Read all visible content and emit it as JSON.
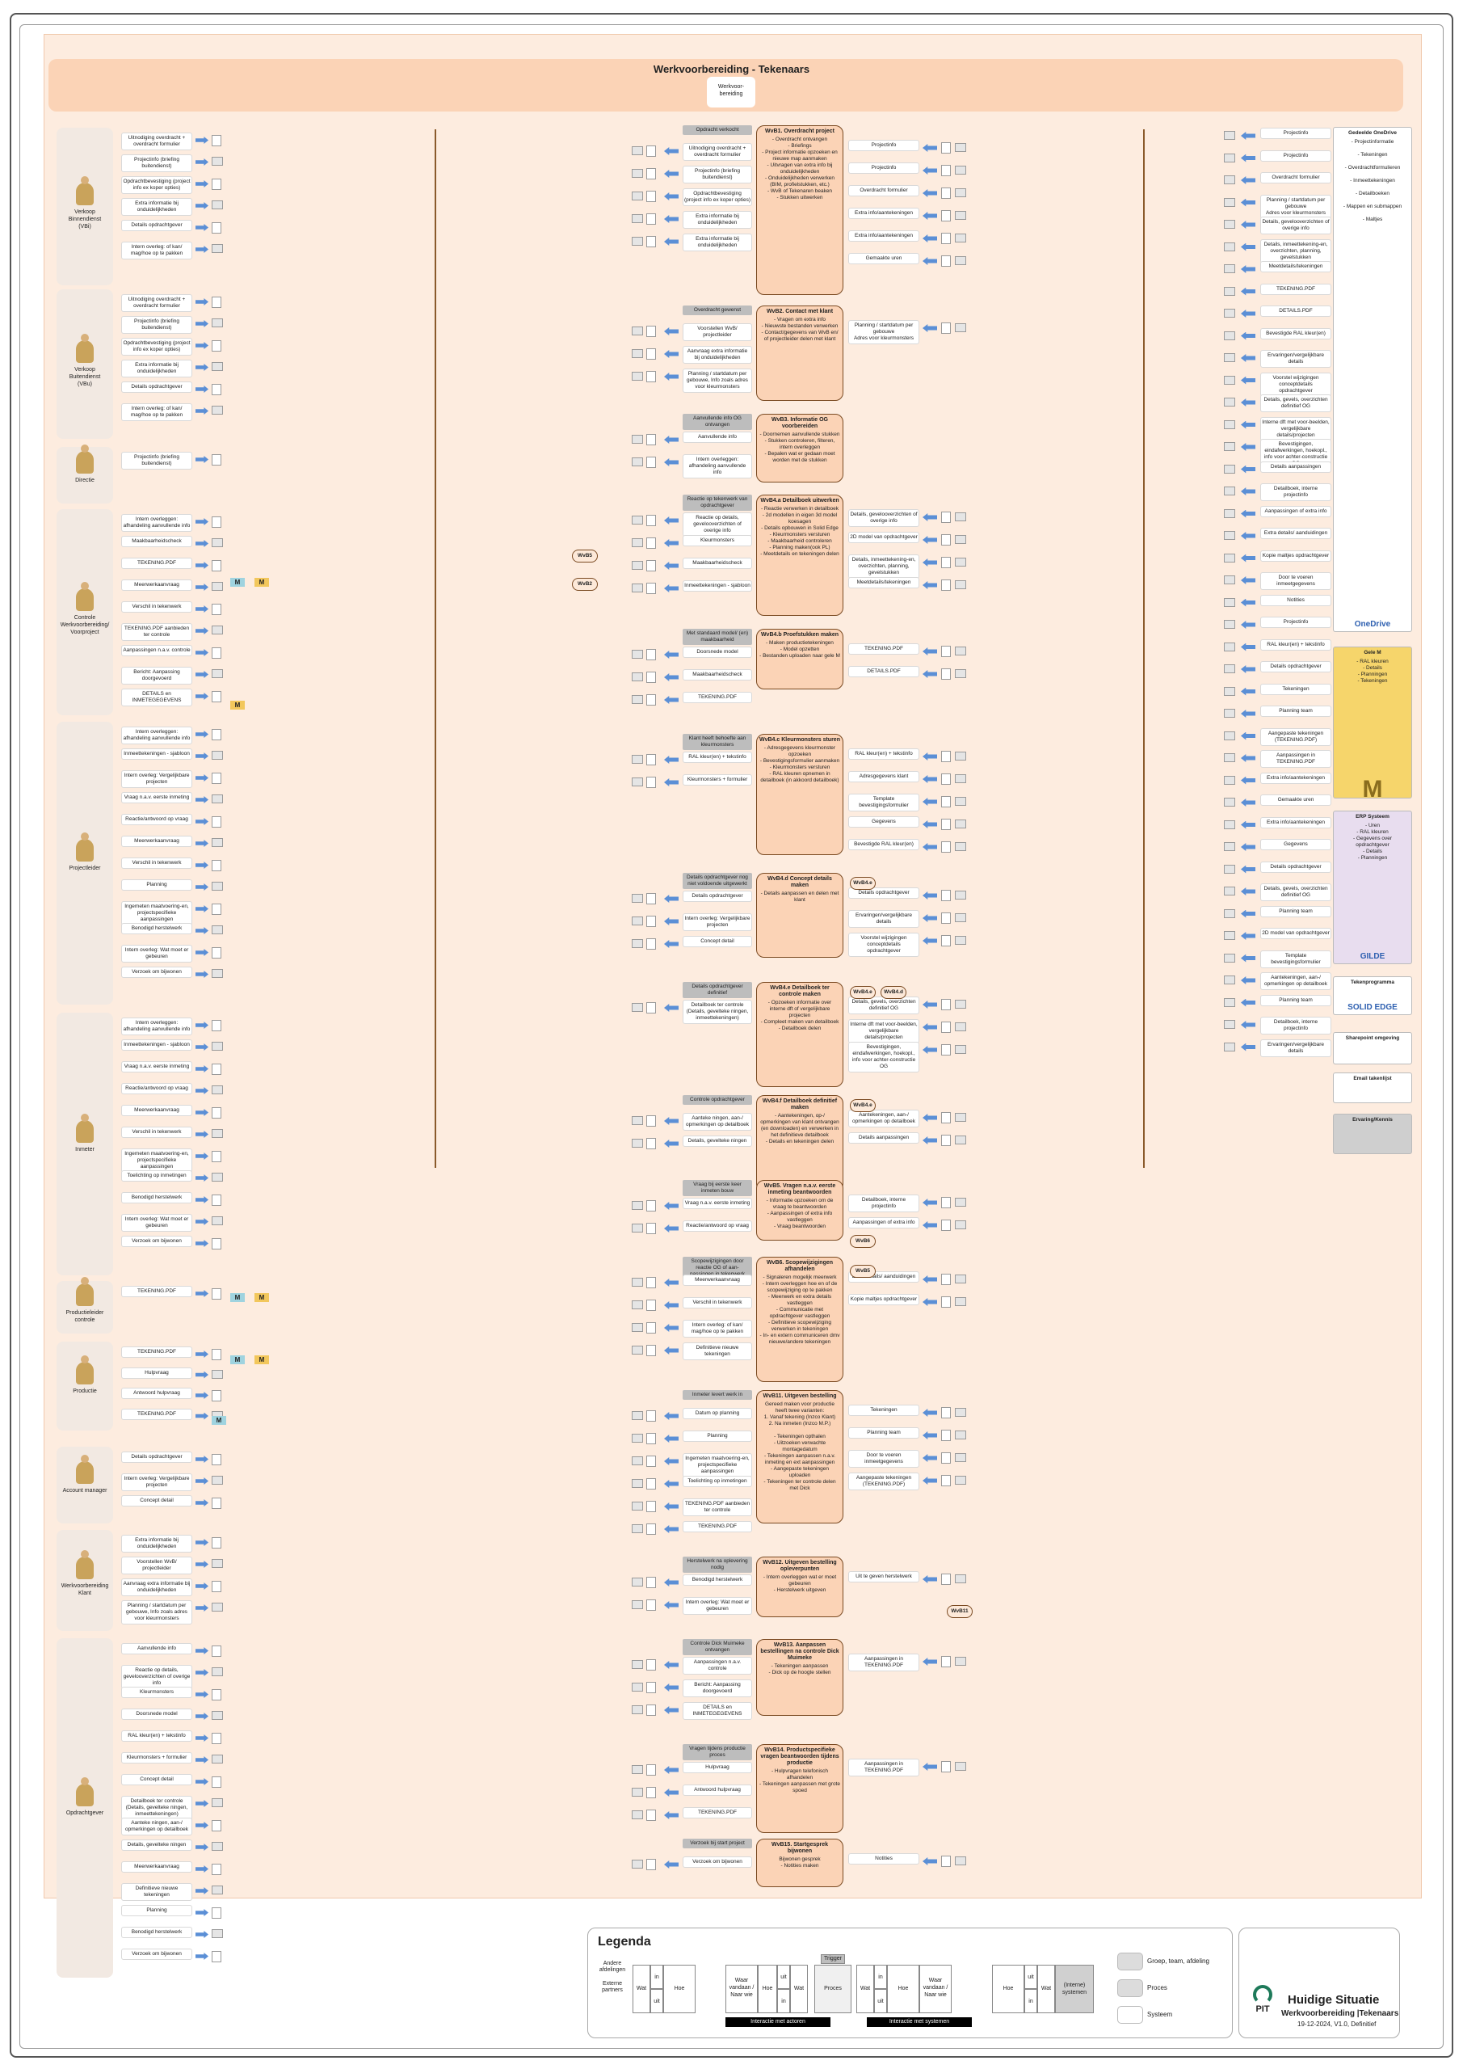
{
  "title": "Werkvoorbereiding - Tekenaars",
  "header_box": "Werkvoor-\nbereiding",
  "actors": [
    {
      "name": "Verkoop\nBinnendienst\n(VBi)",
      "top": 0
    },
    {
      "name": "Verkoop\nBuitendienst\n(VBu)"
    },
    {
      "name": "Directie"
    },
    {
      "name": "Controle\nWerkvoorbereiding/\nVoorproject"
    },
    {
      "name": "Projectleider"
    },
    {
      "name": "Inmeter"
    },
    {
      "name": "Productieleider\ncontrole"
    },
    {
      "name": "Productie"
    },
    {
      "name": "Account manager"
    },
    {
      "name": "Werkvoorbereiding\nKlant"
    },
    {
      "name": "Opdrachtgever"
    }
  ],
  "left_labels": {
    "vbi": [
      "Uitnodiging overdracht + overdracht formulier",
      "Projectinfo (briefing buitendienst)",
      "Opdrachtbevestiging (project info ex koper opties)",
      "Extra informatie bij onduidelijkheden",
      "Details opdrachtgever",
      "Intern overleg: of kan/ mag/hoe op te pakken"
    ],
    "vbu": [
      "Uitnodiging overdracht + overdracht formulier",
      "Projectinfo (briefing buitendienst)",
      "Opdrachtbevestiging (project info ex koper opties)",
      "Extra informatie bij onduidelijkheden",
      "Details opdrachtgever",
      "Intern overleg: of kan/ mag/hoe op te pakken"
    ],
    "directie": [
      "Projectinfo (briefing buitendienst)"
    ],
    "controle": [
      "Intern overleggen: afhandeling aanvullende info",
      "Maakbaarheidscheck",
      "TEKENING.PDF",
      "Meerwerkaanvraag",
      "Verschil in tekenwerk",
      "TEKENING.PDF aanbieden ter controle",
      "Aanpassingen n.a.v. controle",
      "Bericht: Aanpassing doorgevoerd",
      "DETAILS en INMETEGEGEVENS"
    ],
    "projectleider": [
      "Intern overleggen: afhandeling aanvullende info",
      "Inmeettekeningen - sjabloon",
      "Intern overleg: Vergelijkbare projecten",
      "Vraag n.a.v. eerste inmeting",
      "Reactie/antwoord op vraag",
      "Meerwerkaanvraag",
      "Verschil in tekenwerk",
      "Planning",
      "Ingemeten maatvoering-en, projectspecifieke aanpassingen",
      "Benodigd herstelwerk",
      "Intern overleg: Wat moet er gebeuren",
      "Verzoek om bijwonen"
    ],
    "inmeter": [
      "Intern overleggen: afhandeling aanvullende info",
      "Inmeettekeningen - sjabloon",
      "Vraag n.a.v. eerste inmeting",
      "Reactie/antwoord op vraag",
      "Meerwerkaanvraag",
      "Verschil in tekenwerk",
      "Ingemeten maatvoering-en, projectspecifieke aanpassingen",
      "Toelichting op inmetingen",
      "Benodigd herstelwerk",
      "Intern overleg: Wat moet er gebeuren",
      "Verzoek om bijwonen"
    ],
    "productieleider": [
      "TEKENING.PDF"
    ],
    "productie": [
      "TEKENING.PDF",
      "Hulpvraag",
      "Antwoord hulpvraag",
      "TEKENING.PDF"
    ],
    "accountmanager": [
      "Details opdrachtgever",
      "Intern overleg: Vergelijkbare projecten",
      "Concept detail"
    ],
    "wvbklant": [
      "Extra informatie bij onduidelijkheden",
      "Voorstellen WvB/ projectleider",
      "Aanvraag extra informatie bij onduidelijkheden",
      "Planning / startdatum per gebouwe, Info zoals adres voor kleurmonsters"
    ],
    "opdrachtgever": [
      "Aanvullende info",
      "Reactie op details, gevelooverzichten of overige info",
      "Kleurmonsters",
      "Doorsnede model",
      "RAL kleur(en) + tekstinfo",
      "Kleurmonsters + formulier",
      "Concept detail",
      "Detailboek ter controle (Details, gevelteke ningen, inmeettekeningen)",
      "Aanteke ningen, aan-/ opmerkingen op detailboek",
      "Details, gevelteke ningen",
      "Meerwerkaanvraag",
      "Definitieve nieuwe tekeningen",
      "Planning",
      "Benodigd herstelwerk",
      "Verzoek om bijwonen"
    ]
  },
  "processes": [
    {
      "trigger": "Opdracht verkocht",
      "title": "WvB1. Overdracht project",
      "text": "- Overdracht ontvangen\n- Briefings\n- Project informatie opzoeken en nieuwe map aanmaken\n- Uitvragen van extra info bij onduidelijkheden\n- Onduidelijkheden verwerken (BIM, profielstukken, etc.)\n- WvB of Tekenaren beaken\n- Stukken uitwerken",
      "inputs": [
        "Uitnodiging overdracht + overdracht formulier",
        "Projectinfo (briefing buitendienst)",
        "Opdrachtbevestiging (project info ex koper opties)",
        "Extra informatie bij onduidelijkheden",
        "Extra informatie bij onduidelijkheden"
      ],
      "outputs": [
        "Projectinfo",
        "Projectinfo",
        "Overdracht formulier",
        "Extra info/aantekeningen",
        "Extra info/aantekeningen",
        "Gemaakte uren"
      ]
    },
    {
      "trigger": "Overdracht gewenst",
      "title": "WvB2. Contact met klant",
      "text": "- Vragen om extra info\n- Nieuwste bestanden verwerken\n- Contact/gegevens van WvB en/ of projectleider delen met klant",
      "inputs": [
        "Voorstellen WvB/ projectleider",
        "Aanvraag extra informatie bij onduidelijkheden",
        "Planning / startdatum per gebouwe, Info zoals adres voor kleurmonsters"
      ],
      "outputs": [
        "Planning / startdatum per gebouwe\nAdres voor kleurmonsters"
      ]
    },
    {
      "trigger": "Aanvullende info OG ontvangen",
      "title": "WvB3. Informatie OG voorbereiden",
      "text": "- Doornemen aanvullende stukken\n- Stukken controleren, filteren, intern overleggen\n- Bepalen wat er gedaan moet worden met de stukken",
      "inputs": [
        "Aanvullende info",
        "Intern overleggen: afhandeling aanvullende info"
      ],
      "outputs": []
    },
    {
      "trigger": "Reactie op tekenwerk van opdrachtgever",
      "title": "WvB4.a Detailboek uitwerken",
      "text": "- Reactie verwerken in detailboek\n- 2d modellen in eigen 3d model koesagen\n- Details opbouwen in Solid Edge\n- Kleurmonsters versturen\n- Maakbaarheid controleren\n- Planning maken(ook PL)\n- Meetdetails en tekeningen delen",
      "inputs": [
        "Reactie op details, gevelooverzichten of overige info",
        "Kleurmonsters",
        "Maakbaarheidscheck",
        "Inmeettekeningen - sjabloon"
      ],
      "outputs": [
        "Details, gevelooverzichten of overige info",
        "2D model van opdrachtgever",
        "Details, inmeettekening-en, overzichten, planning, gevelstukken",
        "Meetdetails/tekeningen"
      ]
    },
    {
      "trigger": "Met standaard model/ (en) maakbaarheid",
      "title": "WvB4.b Proefstukken maken",
      "text": "- Maken productietekeningen\n- Model opzetten\n- Bestanden uploaden naar gele M",
      "inputs": [
        "Doorsnede model",
        "Maakbaarheidscheck",
        "TEKENING.PDF"
      ],
      "outputs": [
        "TEKENING.PDF",
        "DETAILS.PDF"
      ]
    },
    {
      "trigger": "Klant heeft behoefte aan kleurmonsters",
      "title": "WvB4.c Kleurmonsters sturen",
      "text": "- Adresgegevens kleurmonster opzoeken\n- Bevestigingsformulier aanmaken\n- Kleurmonsters versturen\n- RAL kleuren opnemen in detailboek (in akkoord detailboek)",
      "inputs": [
        "RAL kleur(en) + tekstinfo",
        "Kleurmonsters + formulier"
      ],
      "outputs": [
        "RAL kleur(en) + tekstinfo",
        "Adresgegevens klant",
        "Template bevestigingsformulier",
        "Gegevens",
        "Bevestigde RAL kleur(en)"
      ]
    },
    {
      "trigger": "Details opdrachtgever nog niet voldoende uitgewerkt",
      "title": "WvB4.d Concept details maken",
      "text": "- Details aanpassen en delen met klant",
      "inputs": [
        "Details opdrachtgever",
        "Intern overleg: Vergelijkbare projecten",
        "Concept detail"
      ],
      "outputs": [
        "Details opdrachtgever",
        "Ervaringen/vergelijkbare details",
        "Voorstel wijzigingen conceptdetails opdrachtgever"
      ]
    },
    {
      "trigger": "Details opdrachtgever definitief",
      "title": "WvB4.e Detailboek ter controle maken",
      "text": "- Opzoeken informatie over interne dft of vergelijkbare projecten\n- Compleet maken van detailboek\n- Detailboek delen",
      "inputs": [
        "Detailboek ter controle (Details, gevelteke ningen, inmeettekeningen)"
      ],
      "outputs": [
        "Details, gevels, overzichten definitief OG",
        "Interne dft met voor-beelden, vergelijkbare details/projecten",
        "Bevestigingen, eindafwerkingen, hoekopl., info voor achter-constructie OG"
      ]
    },
    {
      "trigger": "Controle opdrachtgever",
      "title": "WvB4.f Detailboek definitief maken",
      "text": "- Aantekeningen, op-/ opmerkingen van klant ontvangen (en downloaden) en verwerken in het definitieve detailboek\n- Details en tekeningen delen",
      "inputs": [
        "Aanteke ningen, aan-/ opmerkingen op detailboek",
        "Details, gevelteke ningen"
      ],
      "outputs": [
        "Aantekeningen, aan-/ opmerkingen op detailboek",
        "Details aanpassingen"
      ]
    },
    {
      "trigger": "Vraag bij eerste keer inmeten bouw",
      "title": "WvB5. Vragen n.a.v. eerste inmeting beantwoorden",
      "text": "- Informatie opzoeken om de vraag te beantwoorden\n- Aanpassingen of extra info vastleggen\n- Vraag beantwoorden",
      "inputs": [
        "Vraag n.a.v. eerste inmeting",
        "Reactie/antwoord op vraag"
      ],
      "outputs": [
        "Detailboek, interne projectinfo",
        "Aanpassingen of extra info"
      ]
    },
    {
      "trigger": "Scopewijzigingen door reactie OG of aan-passingen in tekenwerk",
      "title": "WvB6. Scopewijzigingen afhandelen",
      "text": "- Signaleren mogelijk meerwerk\n- Intern overleggen hoe en of de scopewijziging op te pakken\n- Meerwerk en extra details vastleggen\n- Communicatie met opdrachtgever vastleggen\n- Definitieve scopewijziging verwerken in tekeningen\n- In- en extern communiceren dmv nieuwe/andere tekeningen",
      "inputs": [
        "Meerwerkaanvraag",
        "Verschil in tekenwerk",
        "Intern overleg: of kan/ mag/hoe op te pakken",
        "Definitieve nieuwe tekeningen"
      ],
      "outputs": [
        "Extra details/ aanduidingen",
        "Kopie maltjes opdrachtgever"
      ]
    },
    {
      "trigger": "Inmeter levert werk in",
      "title": "WvB11. Uitgeven bestelling",
      "text": "Gereed maken voor productie heeft twee varianten:\n1. Vanaf tekening (Inzco Klant)\n2. Na inmeten (Inzco M.P.)\n\n- Tekeningen opthalen\n- Uitzoeken verwachte montagedatum\n- Tekeningen aanpassen n.a.v. inmeting en ext aanpassingen\n- Aangepaste tekeningen uploaden\n- Tekeningen ter controle delen met Dick",
      "inputs": [
        "Datum op planning",
        "Planning",
        "Ingemeten maatvoering-en, projectspecifieke aanpassingen",
        "Toelichting op inmetingen",
        "TEKENING.PDF aanbieden ter controle",
        "TEKENING.PDF"
      ],
      "outputs": [
        "Tekeningen",
        "Planning team",
        "Door te voeren inmeetgegevens",
        "Aangepaste tekeningen (TEKENING.PDF)"
      ]
    },
    {
      "trigger": "Herstelwerk na oplevering nodig",
      "title": "WvB12. Uitgeven bestelling opleverpunten",
      "text": "- Intern overleggen wat er moet gebeuren\n- Herstelwerk uitgeven",
      "inputs": [
        "Benodigd herstelwerk",
        "Intern overleg: Wat moet er gebeuren"
      ],
      "outputs": [
        "Uit te geven herstelwerk"
      ]
    },
    {
      "trigger": "Controle Dick Muimeke ontvangen",
      "title": "WvB13. Aanpassen bestellingen na controle Dick Muimeke",
      "text": "- Tekeningen aanpassen\n- Dick op de hoogte stellen",
      "inputs": [
        "Aanpassingen n.a.v. controle",
        "Bericht: Aanpassing doorgevoerd",
        "DETAILS en INMETEGEGEVENS"
      ],
      "outputs": [
        "Aanpassingen in TEKENING.PDF"
      ]
    },
    {
      "trigger": "Vragen tijdens productie proces",
      "title": "WvB14. Productspecifieke vragen beantwoorden tijdens productie",
      "text": "- Hulpvragen telefonisch afhandelen\n- Tekeningen aanpassen met grote spoed",
      "inputs": [
        "Hulpvraag",
        "Antwoord hulpvraag",
        "TEKENING.PDF"
      ],
      "outputs": [
        "Aanpassingen in TEKENING.PDF"
      ]
    },
    {
      "trigger": "Verzoek bij start project",
      "title": "WvB15. Startgesprek bijwonen",
      "text": "Bijwonen gesprek\n- Notities maken",
      "inputs": [
        "Verzoek om bijwonen"
      ],
      "outputs": [
        "Notities"
      ]
    }
  ],
  "right_labels": [
    "Projectinfo",
    "Projectinfo",
    "Overdracht formulier",
    "Planning / startdatum per gebouwe\nAdres voor kleurmonsters",
    "Details, gevelooverzichten of overige info",
    "Details, inmeettekening-en, overzichten, planning, gevelstukken",
    "Meetdetails/tekeningen",
    "TEKENING.PDF",
    "DETAILS.PDF",
    "Bevestigde RAL kleur(en)",
    "Ervaringen/vergelijkbare details",
    "Voorstel wijzigingen conceptdetails opdrachtgever",
    "Details, gevels, overzichten definitief OG",
    "Interne dft met voor-beelden, vergelijkbare details/projecten",
    "Bevestigingen, eindafwerkingen, hoekopl., info voor achter-constructie OG",
    "Details aanpassingen",
    "Detailboek, interne projectinfo",
    "Aanpassingen of extra info",
    "Extra details/ aanduidingen",
    "Kopie maltjes opdrachtgever",
    "Door te voeren inmeetgegevens",
    "Notities",
    "Projectinfo",
    "RAL kleur(en) + tekstinfo",
    "Details opdrachtgever",
    "Tekeningen",
    "Planning team",
    "Aangepaste tekeningen (TEKENING.PDF)",
    "Aanpassingen in TEKENING.PDF",
    "Extra info/aantekeningen",
    "Gemaakte uren",
    "Extra info/aantekeningen",
    "Gegevens",
    "Details opdrachtgever",
    "Details, gevels, overzichten definitief OG",
    "Planning team",
    "2D model van opdrachtgever",
    "Template bevestigingsformulier",
    "Aantekeningen, aan-/ opmerkingen op detailboek",
    "Planning team",
    "Detailboek, interne projectinfo",
    "Ervaringen/vergelijkbare details"
  ],
  "systems": [
    {
      "name": "Gedeelde OneDrive",
      "items": "- Projectinformatie\n\n- Tekeningen\n\n- Overdrachtformulieren\n\n- Inmeettekeningen\n\n- Detailboeken\n\n- Mappen en submappen\n\n- Maltjes",
      "brand": "OneDrive"
    },
    {
      "name": "Gele M",
      "items": "- RAL kleuren\n- Details\n- Planningen\n- Tekeningen",
      "brand": "M"
    },
    {
      "name": "ERP Systeem",
      "items": "- Uren\n- RAL kleuren\n- Gegevens over opdrachtgever\n- Details\n- Planningen",
      "brand": "GILDE"
    },
    {
      "name": "Tekenprogramma",
      "items": "",
      "brand": "SOLID EDGE"
    },
    {
      "name": "Sharepoint omgeving",
      "items": "",
      "brand": ""
    },
    {
      "name": "Email takenlijst",
      "items": "",
      "brand": ""
    },
    {
      "name": "Ervaring/Kennis",
      "items": "",
      "brand": ""
    }
  ],
  "legend": {
    "title": "Legenda",
    "labels": [
      "Andere afdelingen",
      "Externe partners",
      "Wat",
      "in",
      "uit",
      "Hoe",
      "Waar vandaan / Naar wie",
      "Hoe",
      "uit",
      "in",
      "Wat",
      "Trigger",
      "Proces",
      "Wat",
      "in",
      "uit",
      "Hoe",
      "Waar vandaan / Naar wie",
      "Hoe",
      "uit",
      "in",
      "Wat",
      "(Interne) systemen"
    ],
    "bar1": "Interactie met actoren",
    "bar2": "Interactie met systemen",
    "kinds": [
      "Groep, team, afdeling",
      "Proces",
      "Systeem"
    ]
  },
  "titleblock": {
    "logo": "PIT",
    "heading": "Huidige Situatie",
    "sub": "Werkvoorbereiding |Tekenaars",
    "date": "19-12-2024, V1.0, Definitief"
  },
  "colors": {
    "accent": "#fbd3b6",
    "arrow": "#5b8fd6",
    "process_border": "#7a4a22",
    "canvas": "#fdecdf"
  }
}
